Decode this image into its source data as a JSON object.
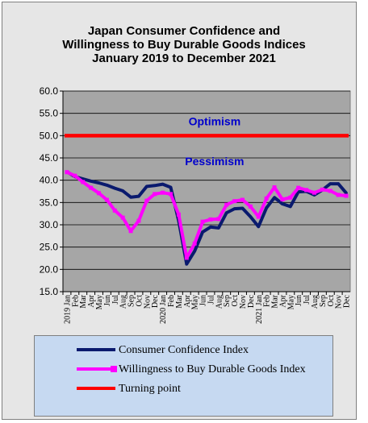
{
  "chart_data": {
    "type": "line",
    "title_lines": [
      "Japan Consumer Confidence and",
      "Willingness to Buy Durable Goods Indices",
      "January 2019 to December 2021"
    ],
    "ylim": [
      15.0,
      60.0
    ],
    "yticks": [
      "15.0",
      "20.0",
      "25.0",
      "30.0",
      "35.0",
      "40.0",
      "45.0",
      "50.0",
      "55.0",
      "60.0"
    ],
    "x": [
      "2019 Jan",
      "Feb",
      "Mar",
      "Apr",
      "May",
      "Jun",
      "Jul",
      "Aug",
      "Sep",
      "Oct",
      "Nov",
      "Dec",
      "2020 Jan",
      "Feb",
      "Mar",
      "Apr",
      "May",
      "Jun",
      "Jul",
      "Aug",
      "Sep",
      "Oct",
      "Nov",
      "Dec",
      "2021 Jan",
      "Feb",
      "Mar",
      "Apr",
      "May",
      "Jun",
      "Jul",
      "Aug",
      "Sep",
      "Oct",
      "Nov",
      "Dec"
    ],
    "series": [
      {
        "name": "Consumer Confidence Index",
        "color": "#0a1a6e",
        "values": [
          41.9,
          40.8,
          40.3,
          39.8,
          39.4,
          38.9,
          38.2,
          37.6,
          36.2,
          36.4,
          38.6,
          38.8,
          39.1,
          38.4,
          30.9,
          21.2,
          24.1,
          28.4,
          29.5,
          29.3,
          32.7,
          33.6,
          33.7,
          31.8,
          29.6,
          33.8,
          36.1,
          34.7,
          34.1,
          37.4,
          37.5,
          36.7,
          37.8,
          39.2,
          39.2,
          37.1
        ]
      },
      {
        "name": "Willingness to Buy Durable Goods Index",
        "color": "#ff00ff",
        "values": [
          41.8,
          41.0,
          39.6,
          38.3,
          37.1,
          35.6,
          33.2,
          31.6,
          28.6,
          30.9,
          35.4,
          36.9,
          37.2,
          36.9,
          32.3,
          22.6,
          25.8,
          30.7,
          31.2,
          31.3,
          34.5,
          35.3,
          35.6,
          34.1,
          31.8,
          35.9,
          38.4,
          35.7,
          36.1,
          38.3,
          37.8,
          37.2,
          37.9,
          37.6,
          36.7,
          36.5
        ]
      },
      {
        "name": "Turning point",
        "color": "#ff0000",
        "values": [
          50,
          50,
          50,
          50,
          50,
          50,
          50,
          50,
          50,
          50,
          50,
          50,
          50,
          50,
          50,
          50,
          50,
          50,
          50,
          50,
          50,
          50,
          50,
          50,
          50,
          50,
          50,
          50,
          50,
          50,
          50,
          50,
          50,
          50,
          50,
          50
        ]
      }
    ],
    "annotations": [
      {
        "text": "Optimism",
        "x_index": 18.5,
        "y": 52.3,
        "color": "#0000cc"
      },
      {
        "text": "Pessimism",
        "x_index": 18.5,
        "y": 43.4,
        "color": "#0000cc"
      }
    ],
    "plot_background": "#a6a6a6",
    "grid": true,
    "legend_position": "bottom"
  }
}
